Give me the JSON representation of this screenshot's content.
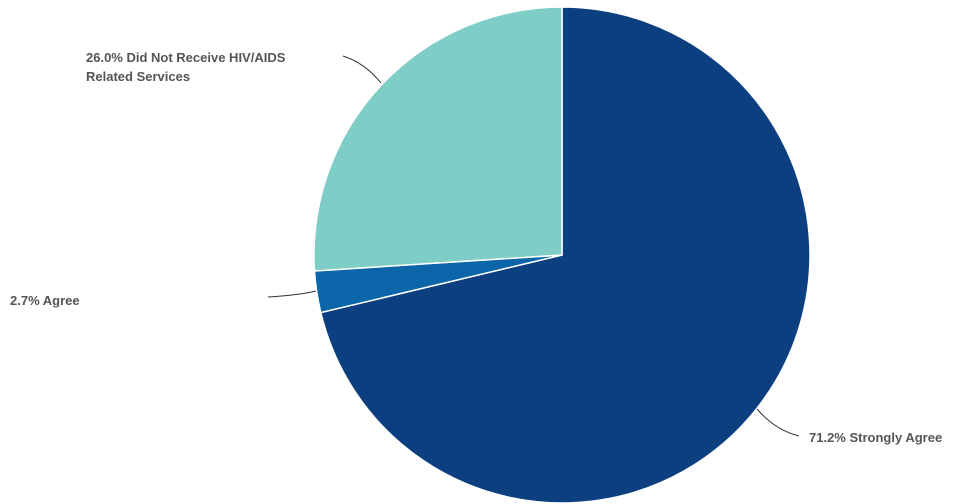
{
  "chart_data": {
    "type": "pie",
    "slices": [
      {
        "label": "Strongly Agree",
        "value": 71.2,
        "display": "71.2% Strongly Agree",
        "color": "#0b3f80"
      },
      {
        "label": "Agree",
        "value": 2.7,
        "display": "2.7% Agree",
        "color": "#0a66a8"
      },
      {
        "label": "Did Not Receive HIV/AIDS Related Services",
        "value": 26.0,
        "display_lines": [
          "26.0% Did Not Receive HIV/AIDS",
          "Related Services"
        ],
        "color": "#7ecdc6"
      }
    ],
    "start_angle_deg": 0,
    "direction": "clockwise",
    "legend": "none"
  }
}
